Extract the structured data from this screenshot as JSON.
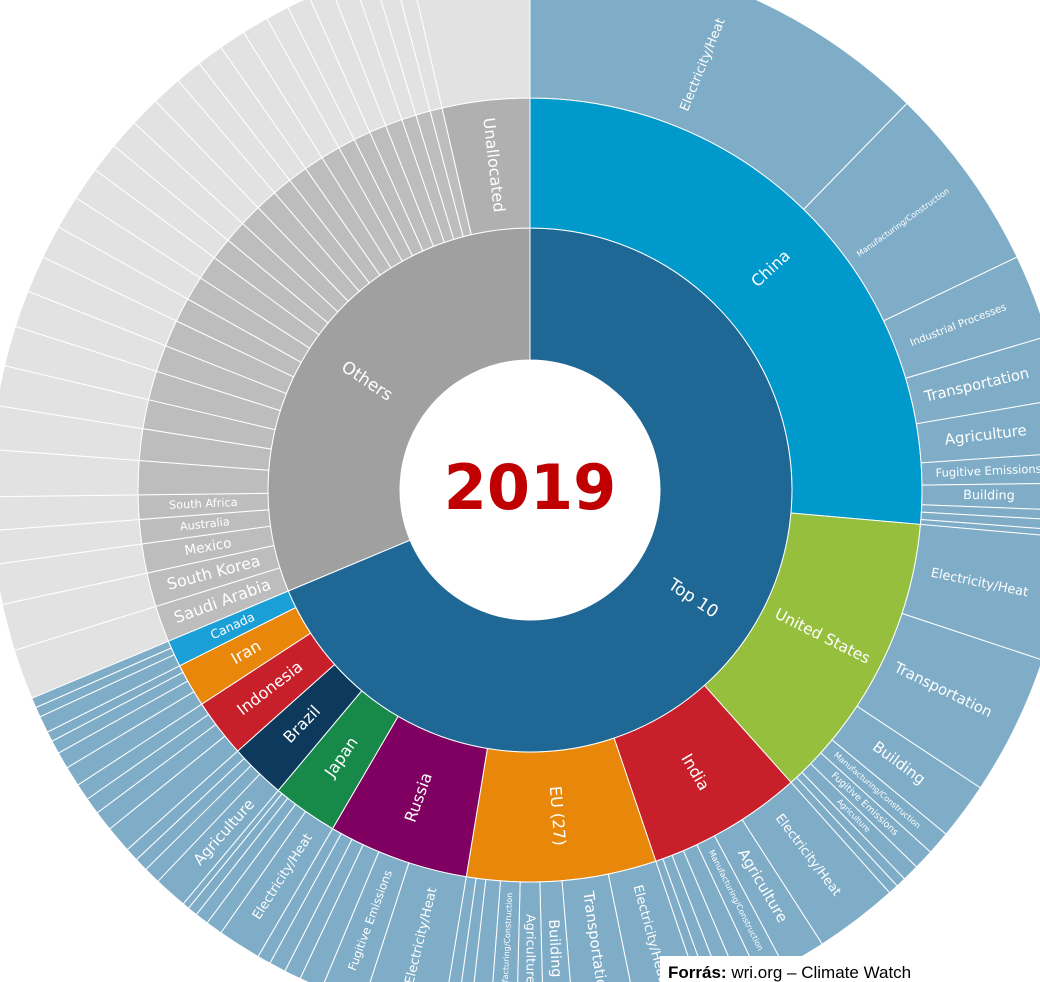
{
  "chart_data": {
    "type": "sunburst",
    "center_label": "2019",
    "source_label": "Forrás:",
    "source_text": "wri.org – Climate Watch",
    "groups": [
      {
        "name": "Top 10",
        "color": "#1f6896",
        "outer_color": "#7fadc8",
        "value": 68.7,
        "children": [
          {
            "name": "China",
            "color": "#0099cc",
            "value": 26.4,
            "children": [
              {
                "name": "Electricity/Heat",
                "value": 12.3
              },
              {
                "name": "Manufacturing/Construction",
                "value": 5.6
              },
              {
                "name": "Industrial Processes",
                "value": 2.5
              },
              {
                "name": "Transportation",
                "value": 1.9
              },
              {
                "name": "Agriculture",
                "value": 1.6
              },
              {
                "name": "Fugitive Emissions",
                "value": 0.9
              },
              {
                "name": "Building",
                "value": 0.8
              },
              {
                "name": null,
                "value": 0.3
              },
              {
                "name": null,
                "value": 0.3
              },
              {
                "name": null,
                "value": 0.2
              }
            ]
          },
          {
            "name": "United States",
            "color": "#96bf3d",
            "value": 12,
            "children": [
              {
                "name": "Electricity/Heat",
                "value": 3.7
              },
              {
                "name": "Transportation",
                "value": 4.2
              },
              {
                "name": "Building",
                "value": 1.7
              },
              {
                "name": "Manufacturing/Construction",
                "value": 0.7
              },
              {
                "name": "Fugitive Emissions",
                "value": 0.6
              },
              {
                "name": "Agriculture",
                "value": 0.5
              },
              {
                "name": null,
                "value": 0.3
              },
              {
                "name": null,
                "value": 0.3
              }
            ]
          },
          {
            "name": "India",
            "color": "#c8202a",
            "value": 6.4,
            "children": [
              {
                "name": "Electricity/Heat",
                "value": 2.5
              },
              {
                "name": "Agriculture",
                "value": 1.3
              },
              {
                "name": "Manufacturing/Construction",
                "value": 0.8
              },
              {
                "name": null,
                "value": 0.6
              },
              {
                "name": null,
                "value": 0.5
              },
              {
                "name": null,
                "value": 0.4
              },
              {
                "name": null,
                "value": 0.3
              }
            ]
          },
          {
            "name": "EU (27)",
            "color": "#e8870a",
            "value": 7.8,
            "children": [
              {
                "name": "Electricity/Heat",
                "value": 2.0
              },
              {
                "name": "Transportation",
                "value": 1.9
              },
              {
                "name": "Building",
                "value": 0.9
              },
              {
                "name": "Agriculture",
                "value": 0.8
              },
              {
                "name": "Manufacturing/Construction",
                "value": 0.8
              },
              {
                "name": null,
                "value": 0.6
              },
              {
                "name": null,
                "value": 0.4
              },
              {
                "name": null,
                "value": 0.4
              }
            ]
          },
          {
            "name": "Russia",
            "color": "#7f0060",
            "value": 5.8,
            "children": [
              {
                "name": "Electricity/Heat",
                "value": 2.4
              },
              {
                "name": "Fugitive Emissions",
                "value": 1.3
              },
              {
                "name": null,
                "value": 0.7
              },
              {
                "name": null,
                "value": 0.5
              },
              {
                "name": null,
                "value": 0.5
              },
              {
                "name": null,
                "value": 0.4
              }
            ]
          },
          {
            "name": "Japan",
            "color": "#178a4a",
            "value": 2.7,
            "children": [
              {
                "name": "Electricity/Heat",
                "value": 1.3
              },
              {
                "name": null,
                "value": 0.5
              },
              {
                "name": null,
                "value": 0.4
              },
              {
                "name": null,
                "value": 0.3
              },
              {
                "name": null,
                "value": 0.2
              }
            ]
          },
          {
            "name": "Brazil",
            "color": "#0d3a5c",
            "value": 2.3,
            "children": [
              {
                "name": "Agriculture",
                "value": 1.0
              },
              {
                "name": null,
                "value": 0.5
              },
              {
                "name": null,
                "value": 0.4
              },
              {
                "name": null,
                "value": 0.4
              }
            ]
          },
          {
            "name": "Indonesia",
            "color": "#c8202a",
            "value": 2.4,
            "children": [
              {
                "name": null,
                "value": 0.8
              },
              {
                "name": null,
                "value": 0.6
              },
              {
                "name": null,
                "value": 0.5
              },
              {
                "name": null,
                "value": 0.5
              }
            ]
          },
          {
            "name": "Iran",
            "color": "#e8870a",
            "value": 1.8,
            "children": [
              {
                "name": null,
                "value": 0.6
              },
              {
                "name": null,
                "value": 0.5
              },
              {
                "name": null,
                "value": 0.4
              },
              {
                "name": null,
                "value": 0.3
              }
            ]
          },
          {
            "name": "Canada",
            "color": "#1a9fd6",
            "value": 1.1,
            "children": [
              {
                "name": null,
                "value": 0.5
              },
              {
                "name": null,
                "value": 0.3
              },
              {
                "name": null,
                "value": 0.3
              }
            ]
          }
        ]
      },
      {
        "name": "Others",
        "color": "#a0a0a0",
        "outer_color": "#e2e2e2",
        "value": 31.3,
        "children": [
          {
            "name": "Saudi Arabia",
            "color": "#bdbdbd",
            "value": 1.5
          },
          {
            "name": "South Korea",
            "color": "#bdbdbd",
            "value": 1.4
          },
          {
            "name": "Mexico",
            "color": "#bdbdbd",
            "value": 1.2
          },
          {
            "name": "Australia",
            "color": "#bdbdbd",
            "value": 1.0
          },
          {
            "name": "South Africa",
            "color": "#bdbdbd",
            "value": 1.0
          },
          {
            "name": null,
            "color": "#bdbdbd",
            "value": 1.4
          },
          {
            "name": null,
            "color": "#bdbdbd",
            "value": 1.3
          },
          {
            "name": null,
            "color": "#bdbdbd",
            "value": 1.2
          },
          {
            "name": null,
            "color": "#bdbdbd",
            "value": 1.2
          },
          {
            "name": null,
            "color": "#bdbdbd",
            "value": 1.1
          },
          {
            "name": null,
            "color": "#bdbdbd",
            "value": 1.1
          },
          {
            "name": null,
            "color": "#bdbdbd",
            "value": 1.0
          },
          {
            "name": null,
            "color": "#bdbdbd",
            "value": 1.0
          },
          {
            "name": null,
            "color": "#bdbdbd",
            "value": 1.0
          },
          {
            "name": null,
            "color": "#bdbdbd",
            "value": 0.9
          },
          {
            "name": null,
            "color": "#bdbdbd",
            "value": 0.9
          },
          {
            "name": null,
            "color": "#bdbdbd",
            "value": 0.9
          },
          {
            "name": null,
            "color": "#bdbdbd",
            "value": 0.9
          },
          {
            "name": null,
            "color": "#bdbdbd",
            "value": 0.8
          },
          {
            "name": null,
            "color": "#bdbdbd",
            "value": 0.8
          },
          {
            "name": null,
            "color": "#bdbdbd",
            "value": 0.8
          },
          {
            "name": null,
            "color": "#bdbdbd",
            "value": 0.8
          },
          {
            "name": null,
            "color": "#bdbdbd",
            "value": 0.7
          },
          {
            "name": null,
            "color": "#bdbdbd",
            "value": 0.7
          },
          {
            "name": null,
            "color": "#bdbdbd",
            "value": 0.7
          },
          {
            "name": null,
            "color": "#bdbdbd",
            "value": 0.7
          },
          {
            "name": null,
            "color": "#bdbdbd",
            "value": 0.6
          },
          {
            "name": null,
            "color": "#bdbdbd",
            "value": 0.6
          },
          {
            "name": null,
            "color": "#bdbdbd",
            "value": 0.5
          },
          {
            "name": "Unallocated",
            "color": "#b0b0b0",
            "value": 3.6
          }
        ]
      }
    ]
  }
}
